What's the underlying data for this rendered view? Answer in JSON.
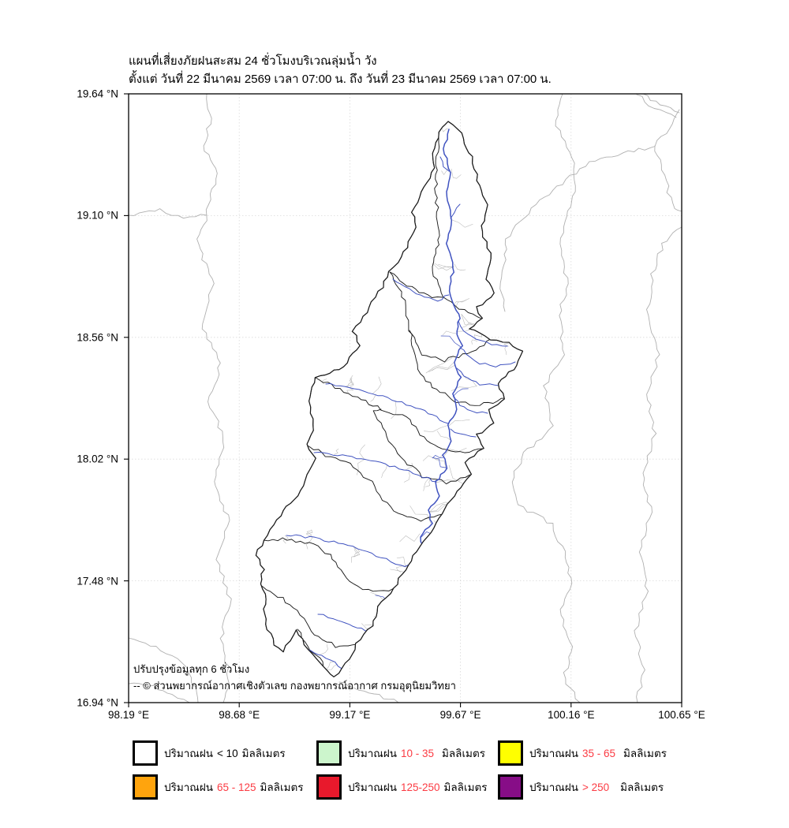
{
  "title": {
    "line1": "แผนที่เสี่ยงภัยฝนสะสม 24 ชั่วโมงบริเวณลุ่มน้ำ วัง",
    "line2": "ตั้งแต่ วันที่ 22 มีนาคม 2569 เวลา 07:00 น. ถึง วันที่ 23 มีนาคม 2569 เวลา 07:00 น."
  },
  "map": {
    "annotation_line1": "ปรับปรุงข้อมูลทุก 6 ชั่วโมง",
    "annotation_line2": "-- © ส่วนพยากรณ์อากาศเชิงตัวเลข กองพยากรณ์อากาศ กรมอุตุนิยมวิทยา",
    "colors": {
      "figure_background": "#ffffff",
      "basin_fill": "#ffffff",
      "basin_outline": "#1c1c1c",
      "river": "#4053c0",
      "stream": "#b5b5b5",
      "province_boundary": "#b0b0b0",
      "gridline": "#d9d9d9",
      "axis": "#000000"
    }
  },
  "axes": {
    "x_ticks": [
      "98.19 °E",
      "98.68 °E",
      "99.17 °E",
      "99.67 °E",
      "100.16 °E",
      "100.65 °E"
    ],
    "y_ticks": [
      "19.64 °N",
      "19.10 °N",
      "18.56 °N",
      "18.02 °N",
      "17.48 °N",
      "16.94 °N"
    ]
  },
  "legend": {
    "items": [
      {
        "prefix": "ปริมาณฝน",
        "range": "< 10",
        "unit": "มิลลิเมตร",
        "box_color": "#ffffff",
        "range_color": "#000000"
      },
      {
        "prefix": "ปริมาณฝน",
        "range": "10 - 35",
        "unit": "มิลลิเมตร",
        "box_color": "#ccf5cc",
        "range_color": "#fb3b43"
      },
      {
        "prefix": "ปริมาณฝน",
        "range": "35 - 65",
        "unit": "มิลลิเมตร",
        "box_color": "#ffff00",
        "range_color": "#fb3b43"
      },
      {
        "prefix": "ปริมาณฝน",
        "range": "65 - 125",
        "unit": "มิลลิเมตร",
        "box_color": "#ffa40d",
        "range_color": "#fb3b43"
      },
      {
        "prefix": "ปริมาณฝน",
        "range": "125-250",
        "unit": "มิลลิเมตร",
        "box_color": "#e8192c",
        "range_color": "#fb3b43"
      },
      {
        "prefix": "ปริมาณฝน",
        "range": "> 250",
        "unit": "มิลลิเมตร",
        "box_color": "#870d87",
        "range_color": "#fb3b43"
      }
    ]
  }
}
